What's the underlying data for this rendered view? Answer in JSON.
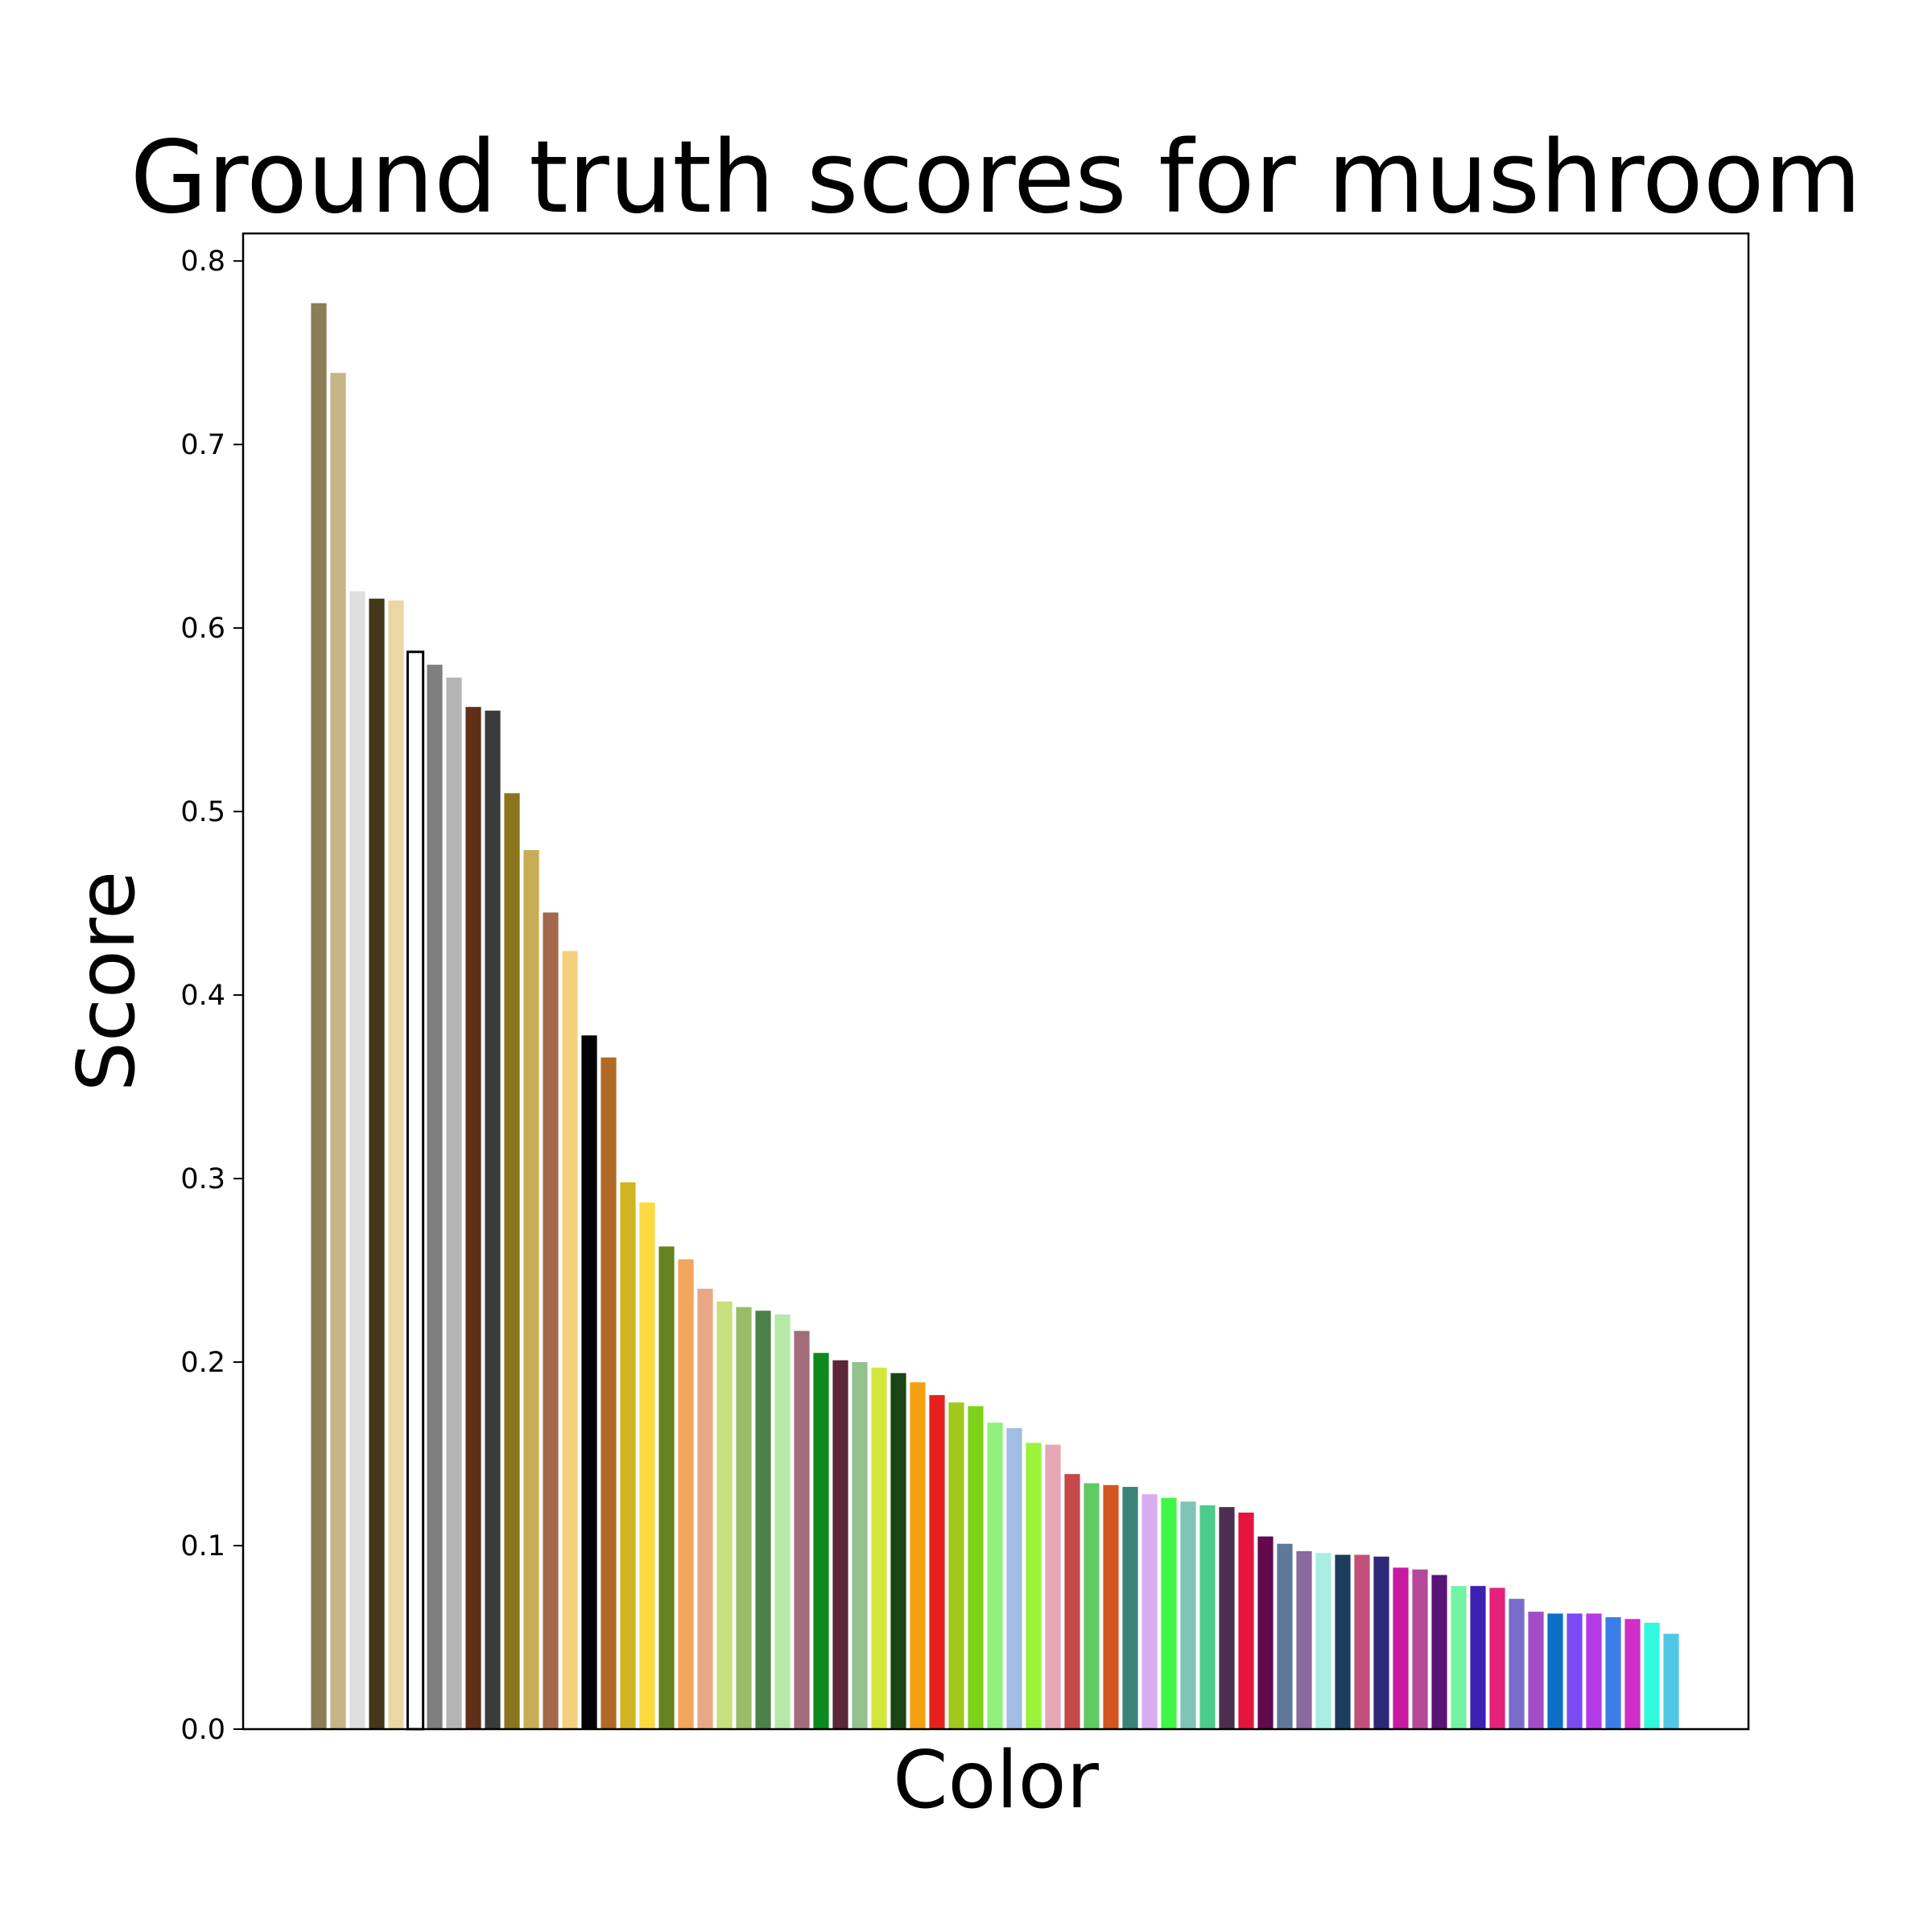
{
  "chart_data": {
    "type": "bar",
    "title": "Ground truth scores for mushroom",
    "xlabel": "Color",
    "ylabel": "Score",
    "ylim": [
      0,
      0.815
    ],
    "yticks": [
      "0.0",
      "0.1",
      "0.2",
      "0.3",
      "0.4",
      "0.5",
      "0.6",
      "0.7",
      "0.8"
    ],
    "ytick_values": [
      0,
      0.1,
      0.2,
      0.3,
      0.4,
      0.5,
      0.6,
      0.7,
      0.8
    ],
    "grid": false,
    "xticks_shown": false,
    "highlight_index": 5,
    "highlight_edge_color": "#000000",
    "values": [
      0.777,
      0.739,
      0.62,
      0.616,
      0.615,
      0.587,
      0.58,
      0.573,
      0.557,
      0.555,
      0.51,
      0.479,
      0.445,
      0.424,
      0.378,
      0.366,
      0.298,
      0.287,
      0.263,
      0.256,
      0.24,
      0.233,
      0.23,
      0.228,
      0.226,
      0.217,
      0.205,
      0.201,
      0.2,
      0.197,
      0.194,
      0.189,
      0.182,
      0.178,
      0.176,
      0.167,
      0.164,
      0.156,
      0.155,
      0.139,
      0.134,
      0.133,
      0.132,
      0.128,
      0.126,
      0.124,
      0.122,
      0.121,
      0.118,
      0.105,
      0.101,
      0.097,
      0.096,
      0.095,
      0.095,
      0.094,
      0.088,
      0.087,
      0.084,
      0.078,
      0.078,
      0.077,
      0.071,
      0.064,
      0.063,
      0.063,
      0.063,
      0.061,
      0.06,
      0.058,
      0.052
    ],
    "colors": [
      "#8b7d55",
      "#c5b587",
      "#dedede",
      "#423718",
      "#ecd7a4",
      "#ffffff",
      "#7e7e7e",
      "#b4b4b4",
      "#612e18",
      "#3b3b3b",
      "#8b761d",
      "#c9ad55",
      "#a3694a",
      "#f4d07c",
      "#000000",
      "#b06a25",
      "#d1b522",
      "#fbd93f",
      "#65821e",
      "#f3a55c",
      "#e8a885",
      "#c9df7b",
      "#99bc66",
      "#4c8148",
      "#b7e8a8",
      "#a26c7b",
      "#0d8a1e",
      "#5c2839",
      "#93c28c",
      "#d2e73a",
      "#1b4414",
      "#f4a011",
      "#e6211c",
      "#a2c81e",
      "#7ed318",
      "#8ff07b",
      "#a2bde3",
      "#9af23b",
      "#e6a7b6",
      "#c5484a",
      "#62ca63",
      "#d4551f",
      "#3b8277",
      "#d9acef",
      "#3ef746",
      "#7fc5b6",
      "#4ccb8d",
      "#4c2e4f",
      "#e4143f",
      "#63094d",
      "#5f7898",
      "#8b6a9f",
      "#a9ede2",
      "#1b3e5d",
      "#c2507a",
      "#2c2978",
      "#c919a2",
      "#b6489a",
      "#571675",
      "#73f3a4",
      "#3c22b2",
      "#e6217a",
      "#7a6ccd",
      "#a14ec6",
      "#0b6fc8",
      "#7a4bf4",
      "#b539e8",
      "#3b7ee9",
      "#cf2ec7",
      "#30f9de",
      "#51c7e8"
    ]
  }
}
